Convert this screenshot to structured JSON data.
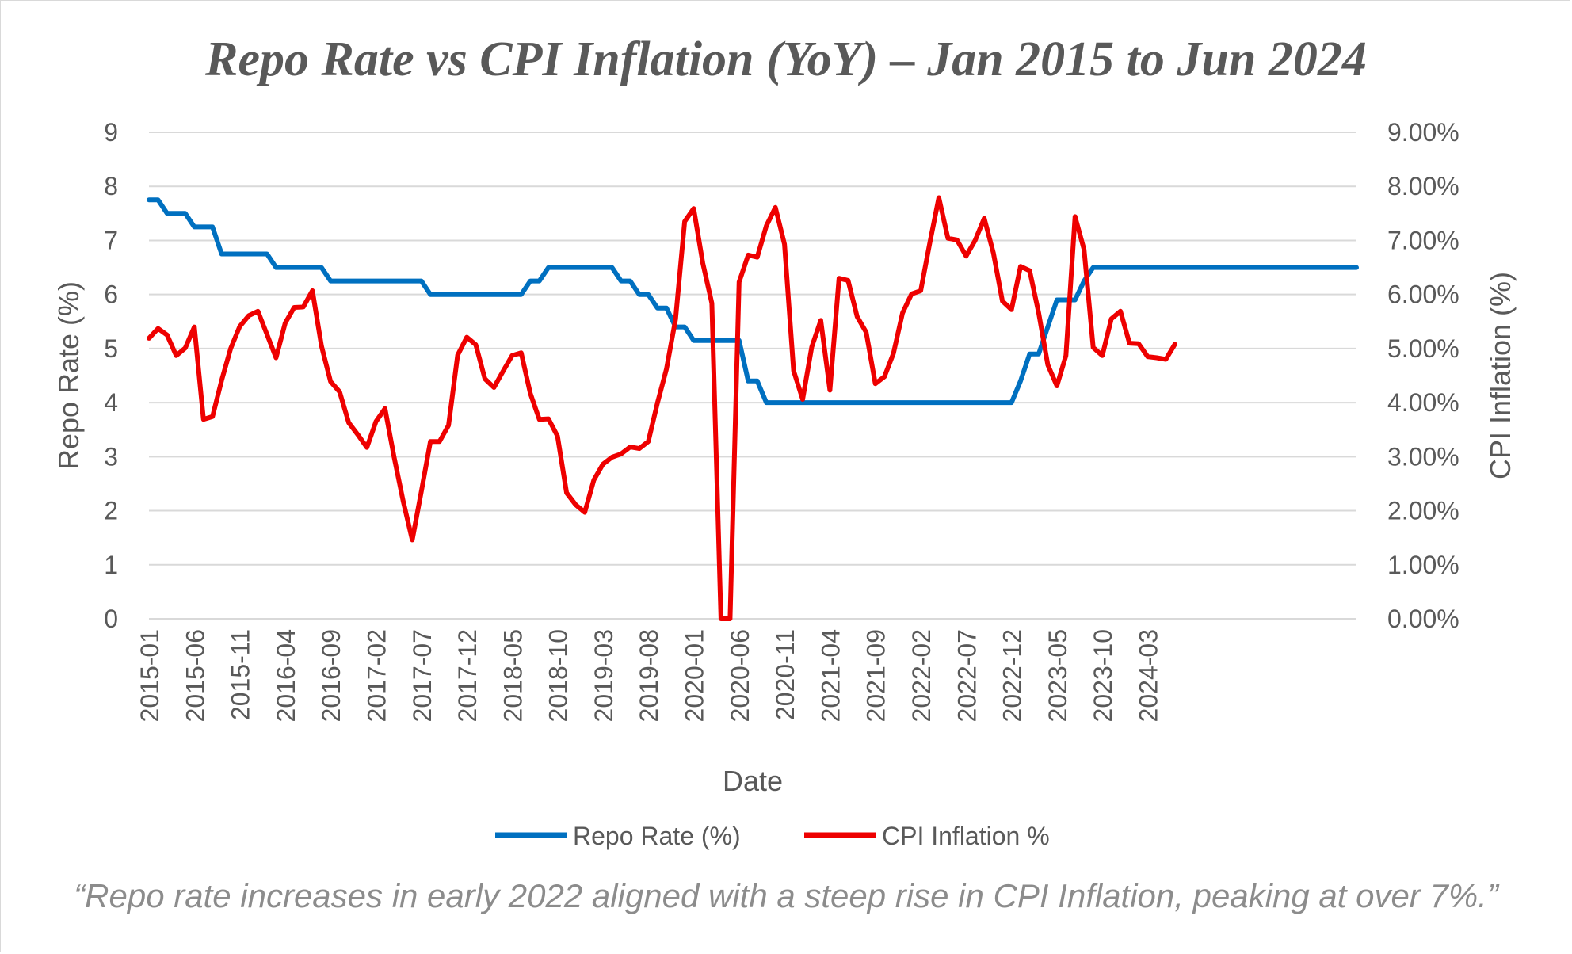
{
  "chart_data": {
    "type": "line",
    "title": "Repo Rate vs CPI Inflation (YoY) – Jan 2015 to Jun 2024",
    "xlabel": "Date",
    "ylabel_left": "Repo Rate (%)",
    "ylabel_right": "CPI Inflation (%)",
    "ylim_left": [
      0,
      9
    ],
    "ylim_right": [
      0,
      9
    ],
    "yticks_left": [
      "0",
      "1",
      "2",
      "3",
      "4",
      "5",
      "6",
      "7",
      "8",
      "9"
    ],
    "yticks_right": [
      "0.00%",
      "1.00%",
      "2.00%",
      "3.00%",
      "4.00%",
      "5.00%",
      "6.00%",
      "7.00%",
      "8.00%",
      "9.00%"
    ],
    "xtick_labels": [
      "2015-01",
      "2015-06",
      "2015-11",
      "2016-04",
      "2016-09",
      "2017-02",
      "2017-07",
      "2017-12",
      "2018-05",
      "2018-10",
      "2019-03",
      "2019-08",
      "2020-01",
      "2020-06",
      "2020-11",
      "2021-04",
      "2021-09",
      "2022-02",
      "2022-07",
      "2022-12",
      "2023-05",
      "2023-10",
      "2024-03"
    ],
    "grid": true,
    "legend_position": "bottom",
    "start_month": "2015-01",
    "end_month": "2024-06",
    "series": [
      {
        "name": "Repo Rate (%)",
        "axis": "left",
        "color": "#0070C0",
        "values": [
          7.75,
          7.75,
          7.5,
          7.5,
          7.5,
          7.25,
          7.25,
          7.25,
          6.75,
          6.75,
          6.75,
          6.75,
          6.75,
          6.75,
          6.5,
          6.5,
          6.5,
          6.5,
          6.5,
          6.5,
          6.25,
          6.25,
          6.25,
          6.25,
          6.25,
          6.25,
          6.25,
          6.25,
          6.25,
          6.25,
          6.25,
          6,
          6,
          6,
          6,
          6,
          6,
          6,
          6,
          6,
          6,
          6,
          6.25,
          6.25,
          6.5,
          6.5,
          6.5,
          6.5,
          6.5,
          6.5,
          6.5,
          6.5,
          6.25,
          6.25,
          6,
          6,
          5.75,
          5.75,
          5.4,
          5.4,
          5.15,
          5.15,
          5.15,
          5.15,
          5.15,
          5.15,
          4.4,
          4.4,
          4,
          4,
          4,
          4,
          4,
          4,
          4,
          4,
          4,
          4,
          4,
          4,
          4,
          4,
          4,
          4,
          4,
          4,
          4,
          4,
          4,
          4,
          4,
          4,
          4,
          4,
          4,
          4,
          4.4,
          4.9,
          4.9,
          5.4,
          5.9,
          5.9,
          5.9,
          6.25,
          6.5,
          6.5,
          6.5,
          6.5,
          6.5,
          6.5,
          6.5,
          6.5,
          6.5,
          6.5,
          6.5,
          6.5,
          6.5,
          6.5,
          6.5,
          6.5,
          6.5,
          6.5,
          6.5,
          6.5,
          6.5,
          6.5,
          6.5,
          6.5,
          6.5,
          6.5,
          6.5,
          6.5,
          6.5,
          6.5
        ]
      },
      {
        "name": "CPI Inflation %",
        "axis": "right",
        "color": "#EE0000",
        "values": [
          5.19,
          5.37,
          5.25,
          4.87,
          5.01,
          5.4,
          3.69,
          3.74,
          4.41,
          5.0,
          5.41,
          5.61,
          5.69,
          5.26,
          4.83,
          5.47,
          5.76,
          5.77,
          6.07,
          5.05,
          4.39,
          4.2,
          3.63,
          3.41,
          3.17,
          3.65,
          3.89,
          2.99,
          2.18,
          1.46,
          2.36,
          3.28,
          3.28,
          3.58,
          4.88,
          5.21,
          5.07,
          4.44,
          4.28,
          4.58,
          4.87,
          4.92,
          4.17,
          3.69,
          3.7,
          3.38,
          2.33,
          2.11,
          1.97,
          2.57,
          2.86,
          2.99,
          3.05,
          3.18,
          3.15,
          3.28,
          3.99,
          4.62,
          5.54,
          7.35,
          7.59,
          6.58,
          5.84,
          0.0,
          0.0,
          6.23,
          6.73,
          6.69,
          7.27,
          7.61,
          6.93,
          4.59,
          4.06,
          5.03,
          5.52,
          4.23,
          6.3,
          6.26,
          5.59,
          5.3,
          4.35,
          4.48,
          4.91,
          5.66,
          6.01,
          6.07,
          6.95,
          7.79,
          7.04,
          7.01,
          6.71,
          7.0,
          7.41,
          6.77,
          5.88,
          5.72,
          6.52,
          6.44,
          5.66,
          4.7,
          4.31,
          4.87,
          7.44,
          6.83,
          5.02,
          4.87,
          5.55,
          5.69,
          5.1,
          5.09,
          4.85,
          4.83,
          4.8,
          5.08
        ]
      }
    ]
  },
  "legend": {
    "items": [
      "Repo Rate (%)",
      "CPI Inflation %"
    ]
  },
  "caption": "“Repo rate increases in early 2022 aligned with a steep rise in CPI Inflation, peaking at over 7%.”"
}
